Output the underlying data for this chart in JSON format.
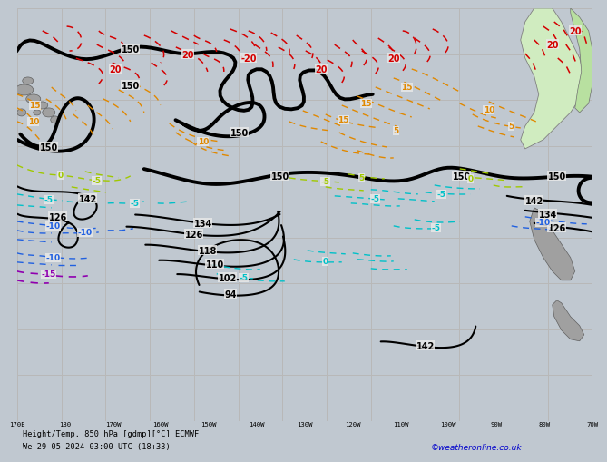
{
  "title": "Height/Temp. 850 hPa [gdmp][°C] ECMWF",
  "bottom_text": "Height/Temp. 850 hPa [gdmp][°C] ECMWF",
  "datetime_text": "We 29-05-2024 03:00 UTC (18+33)",
  "credit_text": "©weatheronline.co.uk",
  "bg_color": "#e8e8e8",
  "grid_color": "#b8b8b8",
  "bottom_bar_color": "#c0c8d0",
  "lon_labels": [
    "170E",
    "180",
    "170W",
    "160W",
    "150W",
    "140W",
    "130W",
    "120W",
    "110W",
    "100W",
    "90W",
    "80W",
    "70W"
  ],
  "red": "#d40000",
  "orange": "#e08800",
  "lgreen": "#a0c800",
  "cyan": "#00c0c8",
  "blue": "#2060e0",
  "purple": "#9000b0",
  "black": "#000000",
  "land_grey": "#a0a0a0",
  "land_green": "#b8e0a0",
  "land_green2": "#d0ecc0"
}
